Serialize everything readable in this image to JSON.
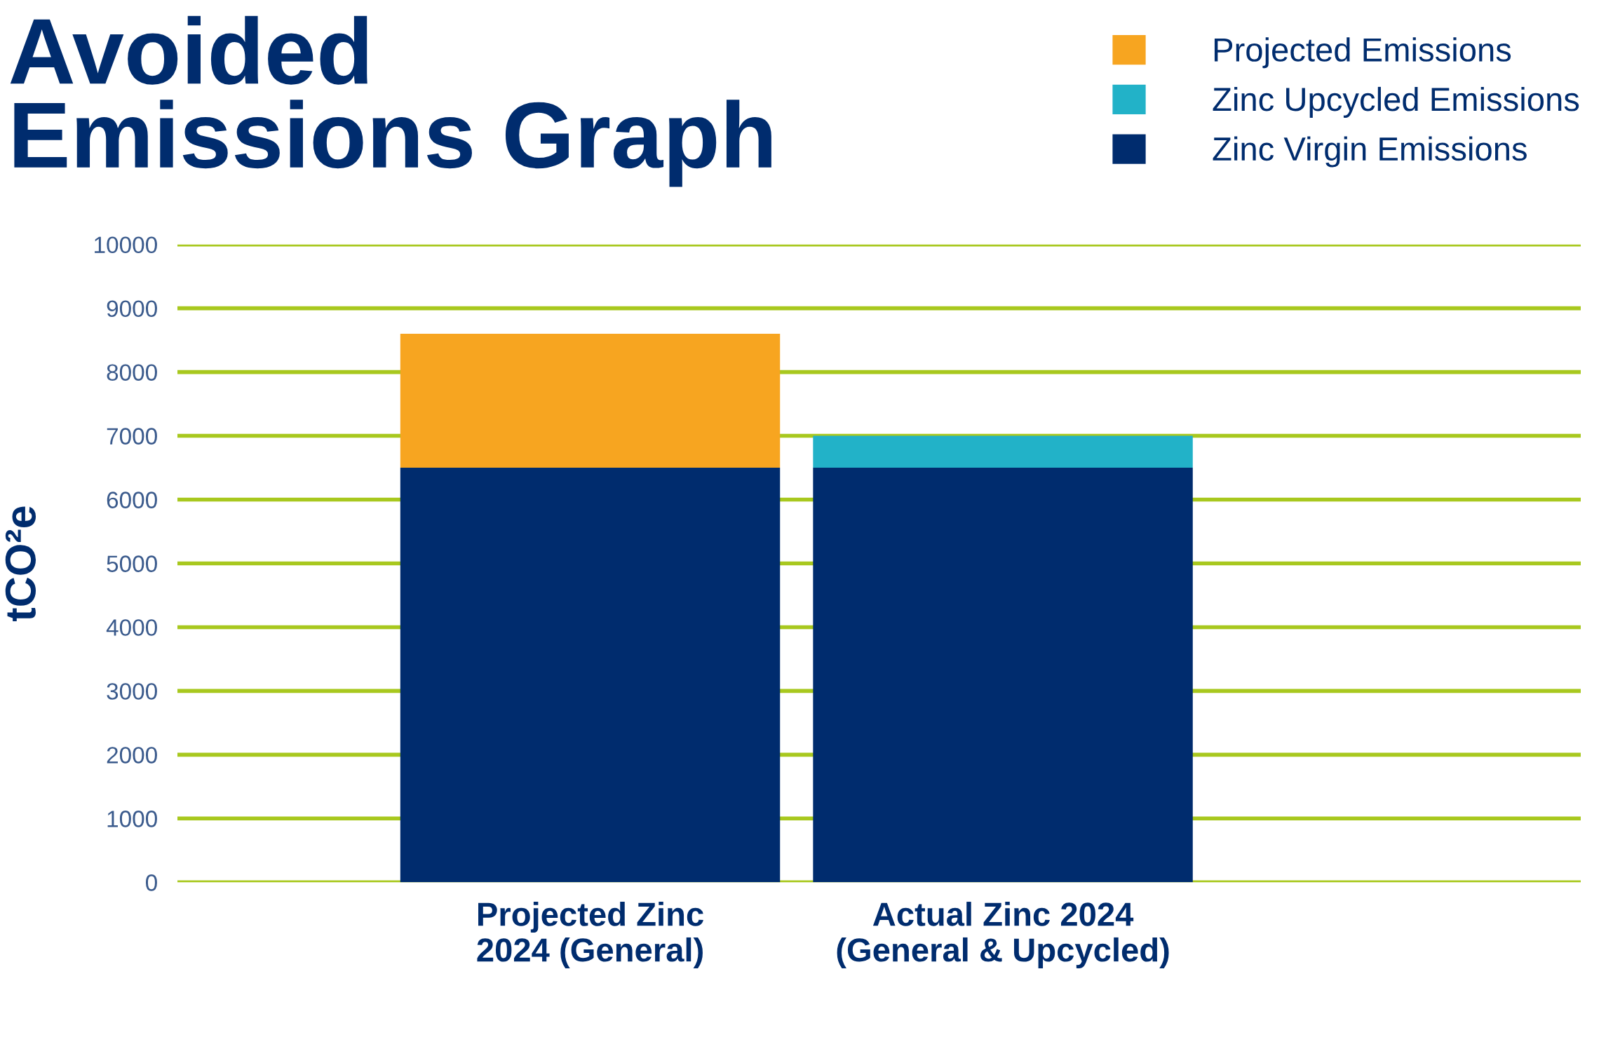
{
  "chart_data": {
    "type": "bar",
    "title": "Avoided\nEmissions Graph",
    "ylabel": "tCO²e",
    "categories": [
      "Projected Zinc\n2024 (General)",
      "Actual Zinc 2024\n(General & Upcycled)"
    ],
    "stacked": true,
    "series": [
      {
        "name": "Zinc Virgin Emissions",
        "color": "#002c6e",
        "values": [
          6500,
          6500
        ]
      },
      {
        "name": "Zinc Upcycled Emissions",
        "color": "#22b2c8",
        "values": [
          null,
          500
        ]
      },
      {
        "name": "Projected Emissions",
        "color": "#f7a520",
        "values": [
          2100,
          null
        ]
      }
    ],
    "ylim": [
      0,
      10000
    ],
    "yticks": [
      0,
      1000,
      2000,
      3000,
      4000,
      5000,
      6000,
      7000,
      8000,
      9000,
      10000
    ],
    "grid": "y",
    "legend": "top right"
  }
}
